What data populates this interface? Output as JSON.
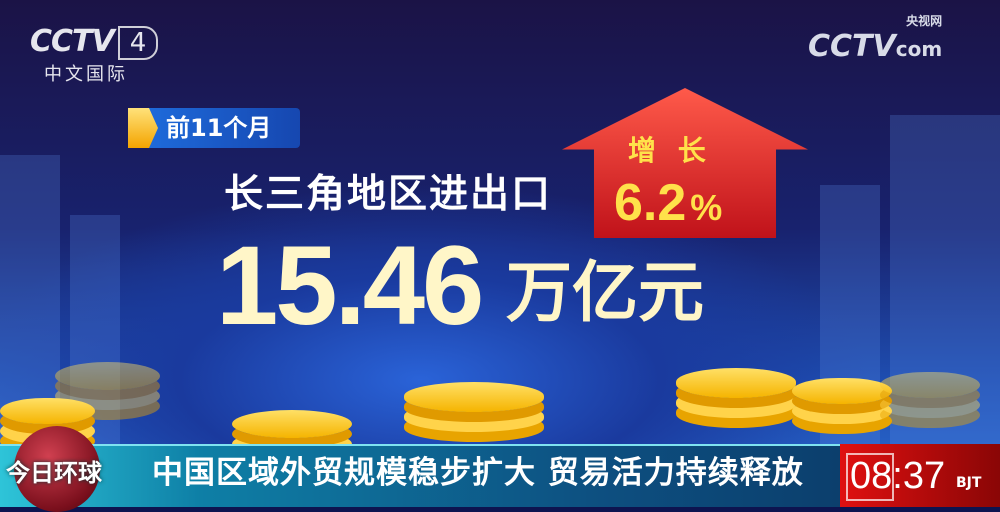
{
  "channel_logo": {
    "brand": "CCTV",
    "channel": "4",
    "subtitle": "中文国际"
  },
  "watermark": {
    "brand": "CCTV",
    "site": "com",
    "site_cn": "央视网"
  },
  "badge": {
    "label": "前11个月"
  },
  "infographic": {
    "subject": "长三角地区进出口",
    "amount": "15.46",
    "unit": "万亿元",
    "growth_label": "增 长",
    "growth_value": "6.2",
    "growth_unit": "%"
  },
  "ticker": {
    "program": "今日环球",
    "headline": "中国区域外贸规模稳步扩大 贸易活力持续释放"
  },
  "clock": {
    "time": "08:37",
    "zone": "BJT"
  },
  "colors": {
    "accent_yellow": "#ffe14a",
    "arrow_red": "#e0201e",
    "ticker_teal": "#0e7fa6",
    "clock_red": "#e01010"
  }
}
